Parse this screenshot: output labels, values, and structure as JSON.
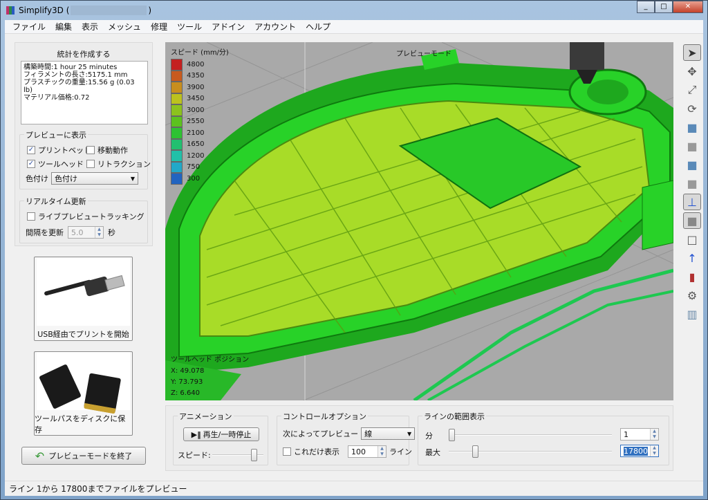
{
  "window": {
    "title": "Simplify3D (",
    "title_end": ")"
  },
  "menu": [
    "ファイル",
    "編集",
    "表示",
    "メッシュ",
    "修理",
    "ツール",
    "アドイン",
    "アカウント",
    "ヘルプ"
  ],
  "stats": {
    "title": "統計を作成する",
    "lines": [
      "構築時間:1 hour 25 minutes",
      "フィラメントの長さ:5175.1 mm",
      "プラスチックの重量:15.56 g (0.03 lb)",
      "マテリアル価格:0.72"
    ]
  },
  "preview_show": {
    "title": "プレビューに表示",
    "print_bed": "プリントベッド",
    "print_bed_checked": true,
    "travel": "移動動作",
    "travel_checked": false,
    "toolhead": "ツールヘッド",
    "toolhead_checked": true,
    "retraction": "リトラクション",
    "retraction_checked": false,
    "color_label": "色付け",
    "color_value": "色付け"
  },
  "realtime": {
    "title": "リアルタイム更新",
    "live_tracking": "ライブプレビュートラッキング",
    "live_checked": false,
    "interval_label": "間隔を更新",
    "interval_value": "5.0",
    "interval_unit": "秒"
  },
  "usb_button": "USB経由でプリントを開始",
  "sd_button": "ツールパスをディスクに保存",
  "exit_button": "プレビューモードを終了",
  "viewport": {
    "mode": "プレビューモード",
    "legend_title": "スピード (mm/分)",
    "legend": [
      {
        "v": "4800",
        "c": "#c42020"
      },
      {
        "v": "4350",
        "c": "#c85a1e"
      },
      {
        "v": "3900",
        "c": "#c88e1e"
      },
      {
        "v": "3450",
        "c": "#bcc21e"
      },
      {
        "v": "3000",
        "c": "#8cc21e"
      },
      {
        "v": "2550",
        "c": "#5cc21e"
      },
      {
        "v": "2100",
        "c": "#2ec232"
      },
      {
        "v": "1650",
        "c": "#22c070"
      },
      {
        "v": "1200",
        "c": "#22c0a8"
      },
      {
        "v": "750",
        "c": "#22a8c8"
      },
      {
        "v": "300",
        "c": "#2264c0"
      }
    ],
    "toolhead_title": "ツールヘッド ポジション",
    "x": "X: 49.078",
    "y": "Y: 73.793",
    "z": "Z: 6.640"
  },
  "animation": {
    "title": "アニメーション",
    "play": "再生/一時停止",
    "speed_label": "スピード:",
    "speed_level": 0.85
  },
  "control": {
    "title": "コントロールオプション",
    "preview_by_label": "次によってプレビュー",
    "preview_by_value": "線",
    "only_show": "これだけ表示",
    "only_show_checked": false,
    "only_value": "100",
    "only_unit": "ライン"
  },
  "range": {
    "title": "ラインの範囲表示",
    "min_label": "分",
    "min_value": "1",
    "max_label": "最大",
    "max_value": "17800",
    "max_fraction": 0.15
  },
  "status": "ライン 1から 17800までファイルをプレビュー"
}
